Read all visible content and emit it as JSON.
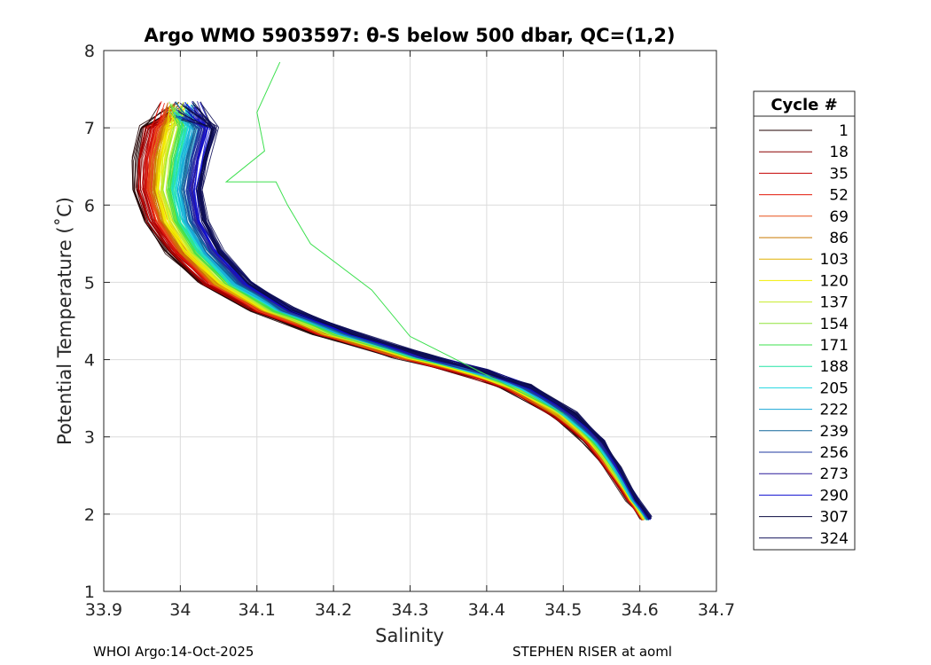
{
  "chart_data": {
    "type": "line",
    "title": "Argo WMO 5903597: θ-S below 500 dbar,  QC=(1,2)",
    "xlabel": "Salinity",
    "ylabel": "Potential Temperature (˚C)",
    "xlim": [
      33.9,
      34.7
    ],
    "ylim": [
      1,
      8
    ],
    "xticks": [
      "33.9",
      "34",
      "34.1",
      "34.2",
      "34.3",
      "34.4",
      "34.5",
      "34.6",
      "34.7"
    ],
    "yticks": [
      "1",
      "2",
      "3",
      "4",
      "5",
      "6",
      "7",
      "8"
    ],
    "grid": true,
    "legend": {
      "title": "Cycle #",
      "position": "right",
      "entries": [
        {
          "label": "1",
          "color": "#200000"
        },
        {
          "label": "18",
          "color": "#8b0000"
        },
        {
          "label": "35",
          "color": "#c40000"
        },
        {
          "label": "52",
          "color": "#e31a0a"
        },
        {
          "label": "69",
          "color": "#e8501a"
        },
        {
          "label": "86",
          "color": "#c87a00"
        },
        {
          "label": "103",
          "color": "#e0b000"
        },
        {
          "label": "120",
          "color": "#f3ee00"
        },
        {
          "label": "137",
          "color": "#c8ec2a"
        },
        {
          "label": "154",
          "color": "#8fe43a"
        },
        {
          "label": "171",
          "color": "#3ce04e"
        },
        {
          "label": "188",
          "color": "#22e3a5"
        },
        {
          "label": "205",
          "color": "#1fd7e0"
        },
        {
          "label": "222",
          "color": "#1aa6d6"
        },
        {
          "label": "239",
          "color": "#10669a"
        },
        {
          "label": "256",
          "color": "#1f3aa0"
        },
        {
          "label": "273",
          "color": "#2a1a9a"
        },
        {
          "label": "290",
          "color": "#1010d0"
        },
        {
          "label": "307",
          "color": "#0a0a40"
        },
        {
          "label": "324",
          "color": "#10105a"
        }
      ]
    },
    "base_profile": [
      [
        34.608,
        1.95
      ],
      [
        34.59,
        2.2
      ],
      [
        34.565,
        2.6
      ],
      [
        34.54,
        2.95
      ],
      [
        34.5,
        3.3
      ],
      [
        34.44,
        3.65
      ],
      [
        34.38,
        3.85
      ],
      [
        34.3,
        4.05
      ],
      [
        34.2,
        4.35
      ],
      [
        34.12,
        4.65
      ],
      [
        34.06,
        5.0
      ],
      [
        34.02,
        5.4
      ],
      [
        33.995,
        5.8
      ],
      [
        33.985,
        6.2
      ],
      [
        33.99,
        6.6
      ],
      [
        34.0,
        7.0
      ]
    ],
    "anomaly_profile": {
      "color": "#3ce04e",
      "points": [
        [
          34.5,
          3.3
        ],
        [
          34.4,
          3.8
        ],
        [
          34.3,
          4.3
        ],
        [
          34.25,
          4.9
        ],
        [
          34.17,
          5.5
        ],
        [
          34.14,
          6.0
        ],
        [
          34.125,
          6.3
        ],
        [
          34.06,
          6.3
        ],
        [
          34.11,
          6.7
        ],
        [
          34.1,
          7.2
        ],
        [
          34.13,
          7.85
        ]
      ]
    }
  },
  "footer": {
    "left": "WHOI Argo:14-Oct-2025",
    "right": "STEPHEN RISER at aoml"
  }
}
